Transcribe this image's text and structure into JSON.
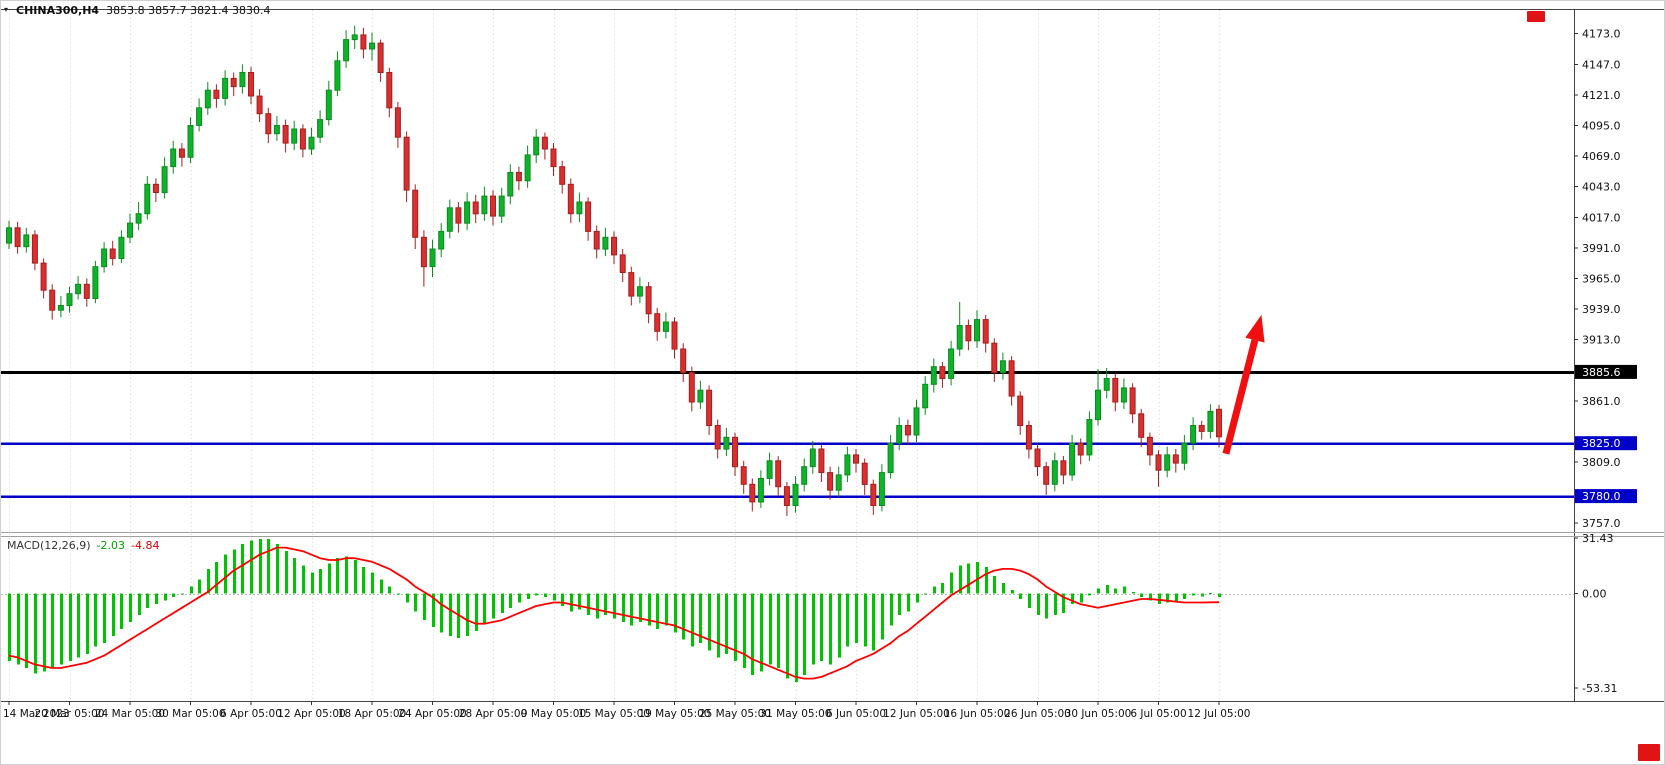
{
  "header": {
    "symbol": "CHINA300,H4",
    "ohlc": "3853.8 3857.7 3821.4 3830.4"
  },
  "macd_label": {
    "name": "MACD(12,26,9)",
    "main": "-2.03",
    "signal": "-4.84"
  },
  "chart_data": {
    "type": "candlestick",
    "title": "CHINA300 H4 candlestick chart with MACD(12,26,9) indicator and red up-trend arrow annotation",
    "x_axis": {
      "labels": [
        {
          "text": "14 Mar 2023",
          "index": 0
        },
        {
          "text": "20 Mar 05:00",
          "index": 7
        },
        {
          "text": "24 Mar 05:00",
          "index": 14
        },
        {
          "text": "30 Mar 05:00",
          "index": 21
        },
        {
          "text": "6 Apr 05:00",
          "index": 28
        },
        {
          "text": "12 Apr 05:00",
          "index": 35
        },
        {
          "text": "18 Apr 05:00",
          "index": 42
        },
        {
          "text": "24 Apr 05:00",
          "index": 49
        },
        {
          "text": "28 Apr 05:00",
          "index": 56
        },
        {
          "text": "9 May 05:00",
          "index": 63
        },
        {
          "text": "15 May 05:00",
          "index": 70
        },
        {
          "text": "19 May 05:00",
          "index": 77
        },
        {
          "text": "25 May 05:00",
          "index": 84
        },
        {
          "text": "31 May 05:00",
          "index": 91
        },
        {
          "text": "6 Jun 05:00",
          "index": 98
        },
        {
          "text": "12 Jun 05:00",
          "index": 105
        },
        {
          "text": "16 Jun 05:00",
          "index": 112
        },
        {
          "text": "26 Jun 05:00",
          "index": 119
        },
        {
          "text": "30 Jun 05:00",
          "index": 126
        },
        {
          "text": "6 Jul 05:00",
          "index": 133
        },
        {
          "text": "12 Jul 05:00",
          "index": 140
        }
      ]
    },
    "y_axis": {
      "ylim": [
        3749.5,
        4192.3
      ],
      "tick_values": [
        4173,
        4147,
        4121,
        4095,
        4069,
        4043,
        4017,
        3991,
        3965,
        3939,
        3913,
        3861,
        3809,
        3757
      ],
      "special_levels": [
        {
          "value": 3885.6,
          "color": "#000000",
          "width": 3
        },
        {
          "value": 3825.0,
          "color": "#0000c8",
          "width": 2.5
        },
        {
          "value": 3780.0,
          "color": "#0000c8",
          "width": 2.5
        }
      ]
    },
    "colors": {
      "bull": "#0fb32a",
      "bull_stroke": "#0a8c20",
      "bear": "#d8302f",
      "bear_stroke": "#a51f1f"
    },
    "candles": [
      [
        3995,
        4014,
        3990,
        4008
      ],
      [
        4008,
        4013,
        3986,
        3992
      ],
      [
        3992,
        4008,
        3987,
        4002
      ],
      [
        4002,
        4006,
        3972,
        3978
      ],
      [
        3978,
        3982,
        3948,
        3955
      ],
      [
        3955,
        3960,
        3930,
        3938
      ],
      [
        3938,
        3950,
        3932,
        3942
      ],
      [
        3942,
        3958,
        3936,
        3952
      ],
      [
        3952,
        3967,
        3947,
        3960
      ],
      [
        3960,
        3965,
        3941,
        3948
      ],
      [
        3948,
        3980,
        3944,
        3975
      ],
      [
        3975,
        3996,
        3970,
        3990
      ],
      [
        3990,
        3997,
        3976,
        3982
      ],
      [
        3982,
        4006,
        3978,
        4000
      ],
      [
        4000,
        4020,
        3995,
        4012
      ],
      [
        4012,
        4030,
        4006,
        4020
      ],
      [
        4020,
        4052,
        4015,
        4045
      ],
      [
        4045,
        4050,
        4030,
        4038
      ],
      [
        4038,
        4068,
        4033,
        4060
      ],
      [
        4060,
        4082,
        4054,
        4075
      ],
      [
        4075,
        4080,
        4060,
        4068
      ],
      [
        4068,
        4102,
        4063,
        4095
      ],
      [
        4095,
        4118,
        4090,
        4110
      ],
      [
        4110,
        4132,
        4104,
        4125
      ],
      [
        4125,
        4130,
        4110,
        4118
      ],
      [
        4118,
        4142,
        4112,
        4135
      ],
      [
        4135,
        4140,
        4120,
        4128
      ],
      [
        4128,
        4147,
        4122,
        4140
      ],
      [
        4140,
        4145,
        4113,
        4120
      ],
      [
        4120,
        4126,
        4098,
        4105
      ],
      [
        4105,
        4110,
        4080,
        4088
      ],
      [
        4088,
        4103,
        4082,
        4095
      ],
      [
        4095,
        4100,
        4072,
        4080
      ],
      [
        4080,
        4099,
        4074,
        4092
      ],
      [
        4092,
        4096,
        4068,
        4075
      ],
      [
        4075,
        4093,
        4070,
        4085
      ],
      [
        4085,
        4108,
        4080,
        4100
      ],
      [
        4100,
        4133,
        4095,
        4125
      ],
      [
        4125,
        4158,
        4120,
        4150
      ],
      [
        4150,
        4176,
        4144,
        4168
      ],
      [
        4168,
        4180,
        4160,
        4172
      ],
      [
        4172,
        4178,
        4152,
        4160
      ],
      [
        4160,
        4174,
        4150,
        4165
      ],
      [
        4165,
        4168,
        4132,
        4140
      ],
      [
        4140,
        4144,
        4102,
        4110
      ],
      [
        4110,
        4115,
        4076,
        4085
      ],
      [
        4085,
        4090,
        4030,
        4040
      ],
      [
        4040,
        4045,
        3990,
        4000
      ],
      [
        4000,
        4006,
        3958,
        3975
      ],
      [
        3975,
        3998,
        3966,
        3990
      ],
      [
        3990,
        4012,
        3983,
        4005
      ],
      [
        4005,
        4032,
        3999,
        4025
      ],
      [
        4025,
        4030,
        4004,
        4012
      ],
      [
        4012,
        4038,
        4006,
        4030
      ],
      [
        4030,
        4036,
        4012,
        4020
      ],
      [
        4020,
        4043,
        4014,
        4035
      ],
      [
        4035,
        4040,
        4010,
        4018
      ],
      [
        4018,
        4042,
        4012,
        4035
      ],
      [
        4035,
        4062,
        4028,
        4055
      ],
      [
        4055,
        4060,
        4040,
        4048
      ],
      [
        4048,
        4078,
        4042,
        4070
      ],
      [
        4070,
        4092,
        4063,
        4085
      ],
      [
        4085,
        4089,
        4066,
        4075
      ],
      [
        4075,
        4080,
        4052,
        4060
      ],
      [
        4060,
        4065,
        4037,
        4045
      ],
      [
        4045,
        4050,
        4012,
        4020
      ],
      [
        4020,
        4038,
        4013,
        4030
      ],
      [
        4030,
        4034,
        3997,
        4005
      ],
      [
        4005,
        4010,
        3982,
        3990
      ],
      [
        3990,
        4008,
        3984,
        4000
      ],
      [
        4000,
        4005,
        3977,
        3985
      ],
      [
        3985,
        3990,
        3962,
        3970
      ],
      [
        3970,
        3975,
        3942,
        3950
      ],
      [
        3950,
        3966,
        3944,
        3958
      ],
      [
        3958,
        3962,
        3927,
        3935
      ],
      [
        3935,
        3940,
        3912,
        3920
      ],
      [
        3920,
        3936,
        3914,
        3928
      ],
      [
        3928,
        3932,
        3897,
        3905
      ],
      [
        3905,
        3910,
        3877,
        3885
      ],
      [
        3885,
        3890,
        3852,
        3860
      ],
      [
        3860,
        3878,
        3854,
        3870
      ],
      [
        3870,
        3874,
        3832,
        3840
      ],
      [
        3840,
        3845,
        3812,
        3820
      ],
      [
        3820,
        3838,
        3814,
        3830
      ],
      [
        3830,
        3834,
        3797,
        3805
      ],
      [
        3805,
        3810,
        3782,
        3790
      ],
      [
        3790,
        3795,
        3767,
        3775
      ],
      [
        3775,
        3802,
        3770,
        3795
      ],
      [
        3795,
        3817,
        3789,
        3810
      ],
      [
        3810,
        3814,
        3780,
        3788
      ],
      [
        3788,
        3792,
        3763,
        3772
      ],
      [
        3772,
        3797,
        3766,
        3790
      ],
      [
        3790,
        3812,
        3784,
        3805
      ],
      [
        3805,
        3827,
        3799,
        3820
      ],
      [
        3820,
        3824,
        3792,
        3800
      ],
      [
        3800,
        3805,
        3777,
        3785
      ],
      [
        3785,
        3805,
        3779,
        3798
      ],
      [
        3798,
        3822,
        3792,
        3815
      ],
      [
        3815,
        3820,
        3800,
        3808
      ],
      [
        3808,
        3812,
        3781,
        3790
      ],
      [
        3790,
        3794,
        3764,
        3772
      ],
      [
        3772,
        3807,
        3767,
        3800
      ],
      [
        3800,
        3832,
        3795,
        3825
      ],
      [
        3825,
        3847,
        3819,
        3840
      ],
      [
        3840,
        3845,
        3824,
        3832
      ],
      [
        3832,
        3862,
        3826,
        3855
      ],
      [
        3855,
        3882,
        3849,
        3875
      ],
      [
        3875,
        3897,
        3868,
        3890
      ],
      [
        3890,
        3894,
        3872,
        3880
      ],
      [
        3880,
        3912,
        3874,
        3905
      ],
      [
        3905,
        3945,
        3899,
        3925
      ],
      [
        3925,
        3930,
        3904,
        3912
      ],
      [
        3912,
        3938,
        3906,
        3930
      ],
      [
        3930,
        3934,
        3902,
        3910
      ],
      [
        3910,
        3914,
        3877,
        3885
      ],
      [
        3885,
        3902,
        3879,
        3895
      ],
      [
        3895,
        3899,
        3857,
        3865
      ],
      [
        3865,
        3869,
        3832,
        3840
      ],
      [
        3840,
        3844,
        3812,
        3820
      ],
      [
        3820,
        3824,
        3797,
        3805
      ],
      [
        3805,
        3809,
        3781,
        3790
      ],
      [
        3790,
        3817,
        3784,
        3810
      ],
      [
        3810,
        3814,
        3790,
        3798
      ],
      [
        3798,
        3832,
        3793,
        3825
      ],
      [
        3825,
        3829,
        3807,
        3815
      ],
      [
        3815,
        3852,
        3810,
        3845
      ],
      [
        3845,
        3888,
        3840,
        3870
      ],
      [
        3870,
        3889,
        3863,
        3880
      ],
      [
        3880,
        3884,
        3852,
        3860
      ],
      [
        3860,
        3880,
        3854,
        3872
      ],
      [
        3872,
        3876,
        3842,
        3850
      ],
      [
        3850,
        3854,
        3822,
        3830
      ],
      [
        3830,
        3834,
        3806,
        3815
      ],
      [
        3815,
        3819,
        3788,
        3802
      ],
      [
        3802,
        3822,
        3796,
        3815
      ],
      [
        3815,
        3820,
        3800,
        3808
      ],
      [
        3808,
        3832,
        3802,
        3825
      ],
      [
        3825,
        3847,
        3819,
        3840
      ],
      [
        3840,
        3844,
        3828,
        3835
      ],
      [
        3835,
        3858,
        3829,
        3852
      ],
      [
        3853.8,
        3857.7,
        3821.4,
        3830.4
      ]
    ],
    "macd": {
      "label": "MACD(12,26,9)",
      "params": [
        12,
        26,
        9
      ],
      "current_main": -2.03,
      "current_signal": -4.84,
      "ylim": [
        -59.5,
        31.43
      ],
      "tick_values": [
        31.43,
        0,
        -53.31
      ],
      "hist_color": "#00c400",
      "signal_color": "#ff0000",
      "main": [
        -38,
        -40,
        -42,
        -45,
        -44,
        -42,
        -40,
        -38,
        -36,
        -34,
        -30,
        -28,
        -24,
        -20,
        -16,
        -12,
        -8,
        -6,
        -4,
        -2,
        0,
        4,
        8,
        14,
        18,
        22,
        25,
        28,
        30,
        31,
        31,
        28,
        24,
        20,
        16,
        12,
        14,
        17,
        20,
        21,
        19,
        15,
        12,
        8,
        4,
        0,
        -5,
        -10,
        -15,
        -19,
        -22,
        -24,
        -25,
        -24,
        -21,
        -17,
        -14,
        -11,
        -8,
        -5,
        -3,
        -1,
        -2,
        -4,
        -7,
        -10,
        -9,
        -12,
        -14,
        -12,
        -14,
        -16,
        -18,
        -16,
        -18,
        -20,
        -18,
        -22,
        -26,
        -30,
        -28,
        -32,
        -36,
        -34,
        -38,
        -42,
        -46,
        -44,
        -40,
        -42,
        -48,
        -50,
        -46,
        -40,
        -38,
        -40,
        -36,
        -30,
        -28,
        -30,
        -32,
        -26,
        -18,
        -12,
        -10,
        -5,
        0,
        4,
        6,
        12,
        16,
        17,
        18,
        15,
        10,
        6,
        2,
        -3,
        -8,
        -12,
        -14,
        -12,
        -11,
        -6,
        -5,
        -1,
        3,
        5,
        3,
        4,
        1,
        -2,
        -4,
        -6,
        -5,
        -5,
        -3,
        -1,
        -1.5,
        0.5,
        -2.03
      ],
      "signal": [
        -35,
        -36,
        -38,
        -40,
        -41,
        -42,
        -42,
        -41,
        -40,
        -39,
        -37,
        -35,
        -32,
        -29,
        -26,
        -23,
        -20,
        -17,
        -14,
        -11,
        -8,
        -5,
        -2,
        1,
        5,
        9,
        13,
        16,
        19,
        22,
        24,
        26,
        26,
        25,
        24,
        22,
        20,
        19,
        19,
        20,
        20,
        19,
        18,
        16,
        14,
        11,
        8,
        4,
        1,
        -2,
        -6,
        -9,
        -12,
        -15,
        -17,
        -17,
        -16,
        -15,
        -13,
        -11,
        -9,
        -7,
        -6,
        -5,
        -5,
        -6,
        -7,
        -8,
        -9,
        -10,
        -11,
        -12,
        -13,
        -14,
        -15,
        -16,
        -17,
        -18,
        -20,
        -22,
        -24,
        -26,
        -28,
        -30,
        -32,
        -34,
        -37,
        -39,
        -41,
        -43,
        -45,
        -47,
        -48,
        -48,
        -47,
        -45,
        -43,
        -41,
        -38,
        -36,
        -34,
        -31,
        -28,
        -24,
        -21,
        -17,
        -13,
        -9,
        -5,
        -1,
        2,
        5,
        8,
        11,
        13,
        14,
        14,
        13,
        11,
        8,
        4,
        1,
        -2,
        -4,
        -6,
        -7,
        -8,
        -7,
        -6,
        -5,
        -4,
        -3,
        -3,
        -3.5,
        -4,
        -4.5,
        -5,
        -5,
        -5,
        -4.9,
        -4.84
      ]
    },
    "annotations": [
      {
        "type": "arrow",
        "color": "#f01010",
        "from": {
          "index": 140.8,
          "price": 3816
        },
        "to": {
          "index": 144.9,
          "price": 3934
        }
      }
    ]
  }
}
